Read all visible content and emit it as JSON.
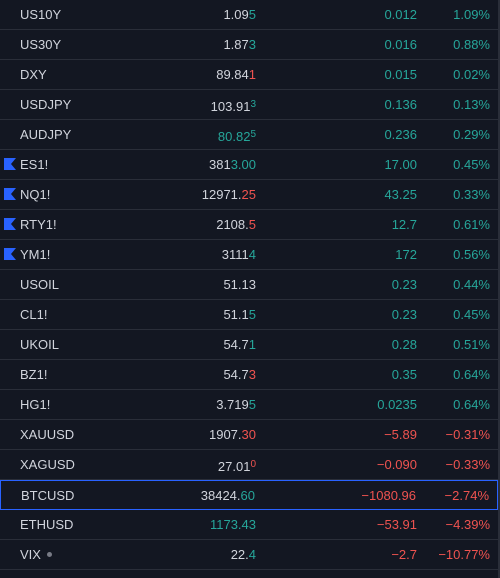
{
  "colors": {
    "up": "#26a69a",
    "down": "#ef5350",
    "neutral": "#d1d4dc",
    "flag": "#2962ff",
    "selection_border": "#2962ff",
    "background": "#131722"
  },
  "rows": [
    {
      "symbol": "US10Y",
      "last_main": "1.09",
      "last_tail": "5",
      "last_tail_color": "green",
      "last_sup": false,
      "change": "0.012",
      "change_pct": "1.09%",
      "dir": "up",
      "flag": false
    },
    {
      "symbol": "US30Y",
      "last_main": "1.87",
      "last_tail": "3",
      "last_tail_color": "green",
      "last_sup": false,
      "change": "0.016",
      "change_pct": "0.88%",
      "dir": "up",
      "flag": false
    },
    {
      "symbol": "DXY",
      "last_main": "89.84",
      "last_tail": "1",
      "last_tail_color": "red",
      "last_sup": false,
      "change": "0.015",
      "change_pct": "0.02%",
      "dir": "up",
      "flag": false
    },
    {
      "symbol": "USDJPY",
      "last_main": "103.91",
      "last_tail": "3",
      "last_tail_color": "green",
      "last_sup": true,
      "change": "0.136",
      "change_pct": "0.13%",
      "dir": "up",
      "flag": false
    },
    {
      "symbol": "AUDJPY",
      "last_main": "80.82",
      "last_tail": "5",
      "last_tail_color": "green",
      "last_sup": true,
      "main_color": "green",
      "change": "0.236",
      "change_pct": "0.29%",
      "dir": "up",
      "flag": false
    },
    {
      "symbol": "ES1!",
      "last_main": "381",
      "last_tail": "3.00",
      "last_tail_color": "green",
      "last_sup": false,
      "change": "17.00",
      "change_pct": "0.45%",
      "dir": "up",
      "flag": true
    },
    {
      "symbol": "NQ1!",
      "last_main": "12971.",
      "last_tail": "25",
      "last_tail_color": "red",
      "last_sup": false,
      "change": "43.25",
      "change_pct": "0.33%",
      "dir": "up",
      "flag": true
    },
    {
      "symbol": "RTY1!",
      "last_main": "2108.",
      "last_tail": "5",
      "last_tail_color": "red",
      "last_sup": false,
      "change": "12.7",
      "change_pct": "0.61%",
      "dir": "up",
      "flag": true
    },
    {
      "symbol": "YM1!",
      "last_main": "3111",
      "last_tail": "4",
      "last_tail_color": "green",
      "last_sup": false,
      "change": "172",
      "change_pct": "0.56%",
      "dir": "up",
      "flag": true
    },
    {
      "symbol": "USOIL",
      "last_main": "51.13",
      "last_tail": "",
      "last_tail_color": "white",
      "last_sup": false,
      "change": "0.23",
      "change_pct": "0.44%",
      "dir": "up",
      "flag": false
    },
    {
      "symbol": "CL1!",
      "last_main": "51.1",
      "last_tail": "5",
      "last_tail_color": "green",
      "last_sup": false,
      "change": "0.23",
      "change_pct": "0.45%",
      "dir": "up",
      "flag": false
    },
    {
      "symbol": "UKOIL",
      "last_main": "54.7",
      "last_tail": "1",
      "last_tail_color": "green",
      "last_sup": false,
      "change": "0.28",
      "change_pct": "0.51%",
      "dir": "up",
      "flag": false
    },
    {
      "symbol": "BZ1!",
      "last_main": "54.7",
      "last_tail": "3",
      "last_tail_color": "red",
      "last_sup": false,
      "change": "0.35",
      "change_pct": "0.64%",
      "dir": "up",
      "flag": false
    },
    {
      "symbol": "HG1!",
      "last_main": "3.719",
      "last_tail": "5",
      "last_tail_color": "green",
      "last_sup": false,
      "change": "0.0235",
      "change_pct": "0.64%",
      "dir": "up",
      "flag": false
    },
    {
      "symbol": "XAUUSD",
      "last_main": "1907.",
      "last_tail": "30",
      "last_tail_color": "red",
      "last_sup": false,
      "change": "−5.89",
      "change_pct": "−0.31%",
      "dir": "down",
      "flag": false
    },
    {
      "symbol": "XAGUSD",
      "last_main": "27.01",
      "last_tail": "0",
      "last_tail_color": "red",
      "last_sup": true,
      "change": "−0.090",
      "change_pct": "−0.33%",
      "dir": "down",
      "flag": false
    },
    {
      "symbol": "BTCUSD",
      "last_main": "38424.",
      "last_tail": "60",
      "last_tail_color": "green",
      "last_sup": false,
      "change": "−1080.96",
      "change_pct": "−2.74%",
      "dir": "down",
      "flag": false,
      "selected": true
    },
    {
      "symbol": "ETHUSD",
      "last_main": "1173.43",
      "last_tail": "",
      "last_tail_color": "green",
      "last_sup": false,
      "main_color": "green",
      "change": "−53.91",
      "change_pct": "−4.39%",
      "dir": "down",
      "flag": false
    },
    {
      "symbol": "VIX",
      "last_main": "22.",
      "last_tail": "4",
      "last_tail_color": "green",
      "last_sup": false,
      "change": "−2.7",
      "change_pct": "−10.77%",
      "dir": "down",
      "flag": false,
      "status_dot": true
    }
  ]
}
